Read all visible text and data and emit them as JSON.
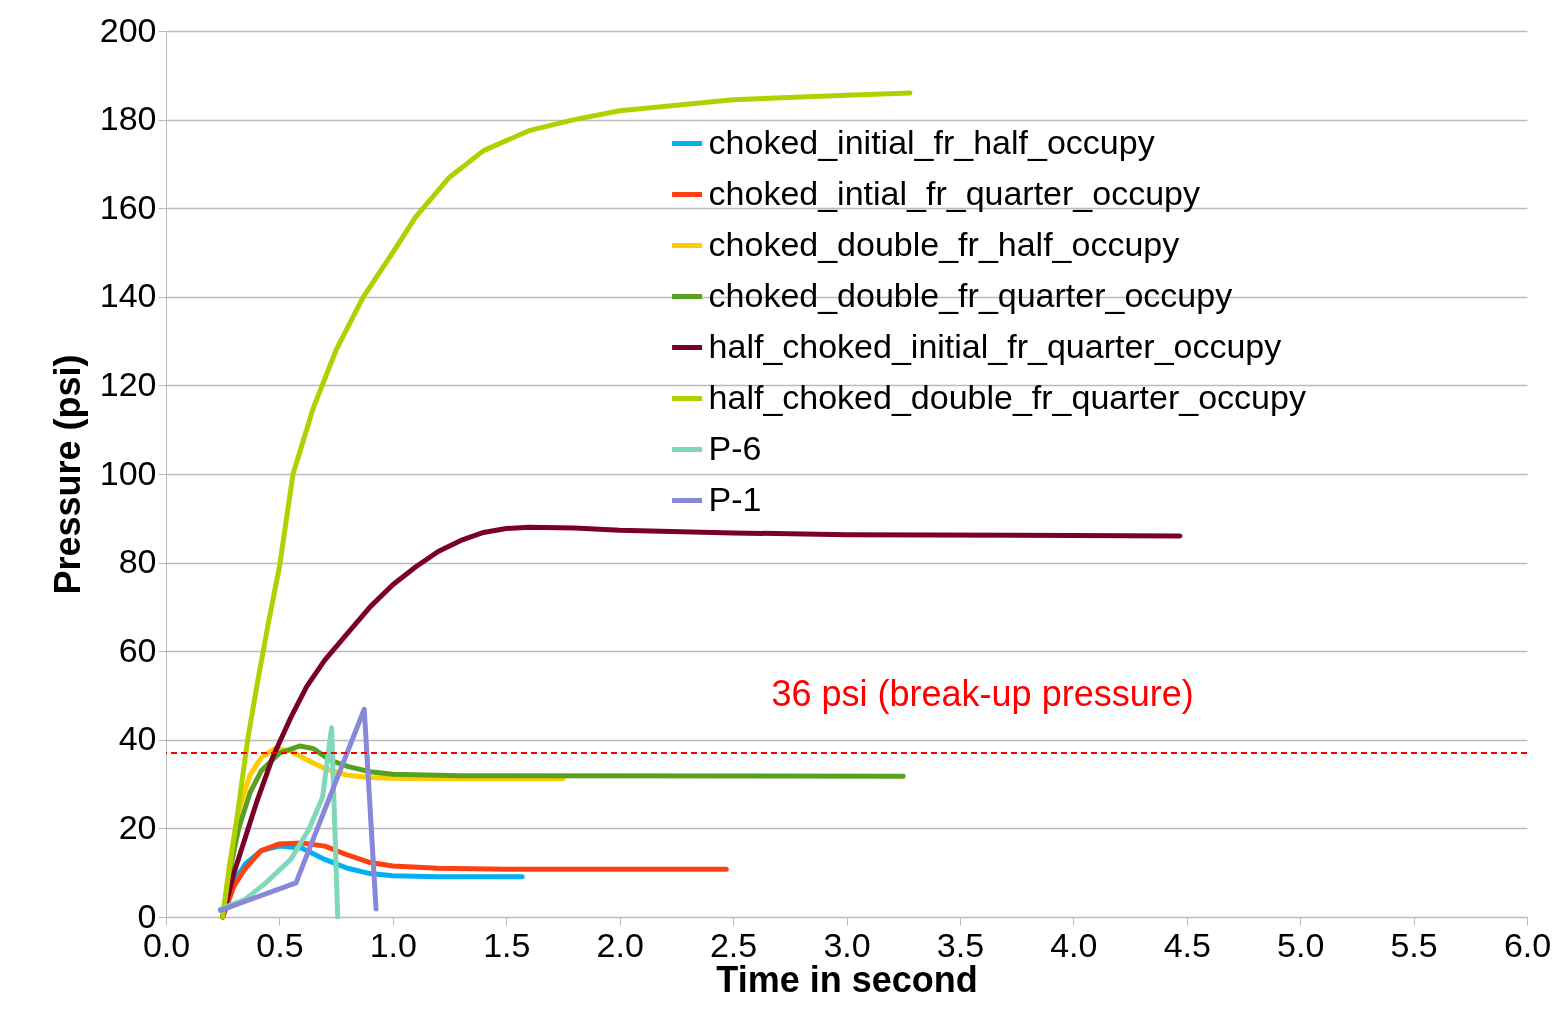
{
  "chart_data": {
    "type": "line",
    "xlabel": "Time in second",
    "ylabel": "Pressure (psi)",
    "xlim": [
      0,
      6
    ],
    "xticks": [
      {
        "value": 0,
        "label": "0.0"
      },
      {
        "value": 0.5,
        "label": "0.5"
      },
      {
        "value": 1,
        "label": "1.0"
      },
      {
        "value": 1.5,
        "label": "1.5"
      },
      {
        "value": 2,
        "label": "2.0"
      },
      {
        "value": 2.5,
        "label": "2.5"
      },
      {
        "value": 3,
        "label": "3.0"
      },
      {
        "value": 3.5,
        "label": "3.5"
      },
      {
        "value": 4,
        "label": "4.0"
      },
      {
        "value": 4.5,
        "label": "4.5"
      },
      {
        "value": 5,
        "label": "5.0"
      },
      {
        "value": 5.5,
        "label": "5.5"
      },
      {
        "value": 6,
        "label": "6.0"
      }
    ],
    "ylim": [
      0,
      200
    ],
    "yticks": [
      0,
      20,
      40,
      60,
      80,
      100,
      120,
      140,
      160,
      180,
      200
    ],
    "grid": "y",
    "legend": "top right",
    "marker": "none",
    "line_style": "solid",
    "ref_lines": [
      {
        "axis": "y",
        "value": 37,
        "label": "36 psi (break-up pressure)",
        "color": "#ff0000",
        "line_style": "dashed"
      }
    ],
    "series": [
      {
        "name": "choked_initial_fr_half_occupy",
        "color": "#00b0f0",
        "x": [
          0.25,
          0.3,
          0.35,
          0.42,
          0.5,
          0.6,
          0.7,
          0.8,
          0.9,
          1.0,
          1.2,
          1.57
        ],
        "values": [
          0,
          8,
          12,
          15,
          16,
          15.5,
          13,
          11,
          9.8,
          9.3,
          9.1,
          9.1
        ]
      },
      {
        "name": "choked_intial_fr_quarter_occupy",
        "color": "#ff4010",
        "x": [
          0.25,
          0.3,
          0.35,
          0.42,
          0.5,
          0.6,
          0.7,
          0.8,
          0.9,
          1.0,
          1.2,
          1.5,
          2.47
        ],
        "values": [
          0,
          7,
          11,
          15,
          16.5,
          16.7,
          16,
          14,
          12.3,
          11.5,
          11,
          10.8,
          10.8
        ]
      },
      {
        "name": "choked_double_fr_half_occupy",
        "color": "#ffcc00",
        "x": [
          0.25,
          0.28,
          0.32,
          0.37,
          0.42,
          0.48,
          0.55,
          0.62,
          0.7,
          0.8,
          0.9,
          1.0,
          1.2,
          1.75
        ],
        "values": [
          0,
          12,
          24,
          32,
          36,
          38,
          37.5,
          35.5,
          33.5,
          32,
          31.5,
          31.3,
          31.2,
          31.2
        ]
      },
      {
        "name": "choked_double_fr_quarter_occupy",
        "color": "#58a020",
        "x": [
          0.25,
          0.28,
          0.32,
          0.37,
          0.42,
          0.5,
          0.59,
          0.65,
          0.72,
          0.8,
          0.9,
          1.0,
          1.3,
          3.25
        ],
        "values": [
          0,
          10,
          20,
          28,
          33,
          37,
          38.6,
          38,
          35.5,
          34,
          32.8,
          32.2,
          31.9,
          31.8
        ]
      },
      {
        "name": "half_choked_initial_fr_quarter_occupy",
        "color": "#7b0028",
        "x": [
          0.25,
          0.3,
          0.35,
          0.4,
          0.47,
          0.55,
          0.62,
          0.7,
          0.8,
          0.9,
          1.0,
          1.1,
          1.2,
          1.3,
          1.4,
          1.5,
          1.6,
          1.8,
          2.0,
          2.5,
          3.0,
          4.0,
          4.47
        ],
        "values": [
          0,
          10,
          18,
          26,
          36,
          45,
          52,
          58,
          64,
          70,
          75,
          79,
          82.5,
          85,
          86.8,
          87.7,
          88,
          87.8,
          87.3,
          86.7,
          86.3,
          86.1,
          86
        ]
      },
      {
        "name": "half_choked_double_fr_quarter_occupy",
        "color": "#b0d000",
        "x": [
          0.25,
          0.28,
          0.32,
          0.36,
          0.4,
          0.45,
          0.5,
          0.56,
          0.65,
          0.75,
          0.87,
          1.0,
          1.1,
          1.25,
          1.4,
          1.6,
          1.8,
          2.0,
          2.5,
          3.0,
          3.28
        ],
        "values": [
          0,
          11,
          25,
          40,
          52,
          66,
          79,
          100,
          115,
          128,
          140,
          150,
          158,
          167,
          173,
          177.5,
          180,
          182,
          184.5,
          185.5,
          186
        ]
      },
      {
        "name": "P-6",
        "color": "#80d8b8",
        "x": [
          0.24,
          0.35,
          0.44,
          0.55,
          0.63,
          0.69,
          0.73,
          0.757
        ],
        "values": [
          1.8,
          4,
          7.7,
          13,
          19.8,
          27,
          42.7,
          0
        ]
      },
      {
        "name": "P-1",
        "color": "#8888d8",
        "x": [
          0.24,
          0.573,
          0.874,
          0.926
        ],
        "values": [
          1.5,
          7.7,
          46.9,
          1.8
        ]
      }
    ]
  }
}
